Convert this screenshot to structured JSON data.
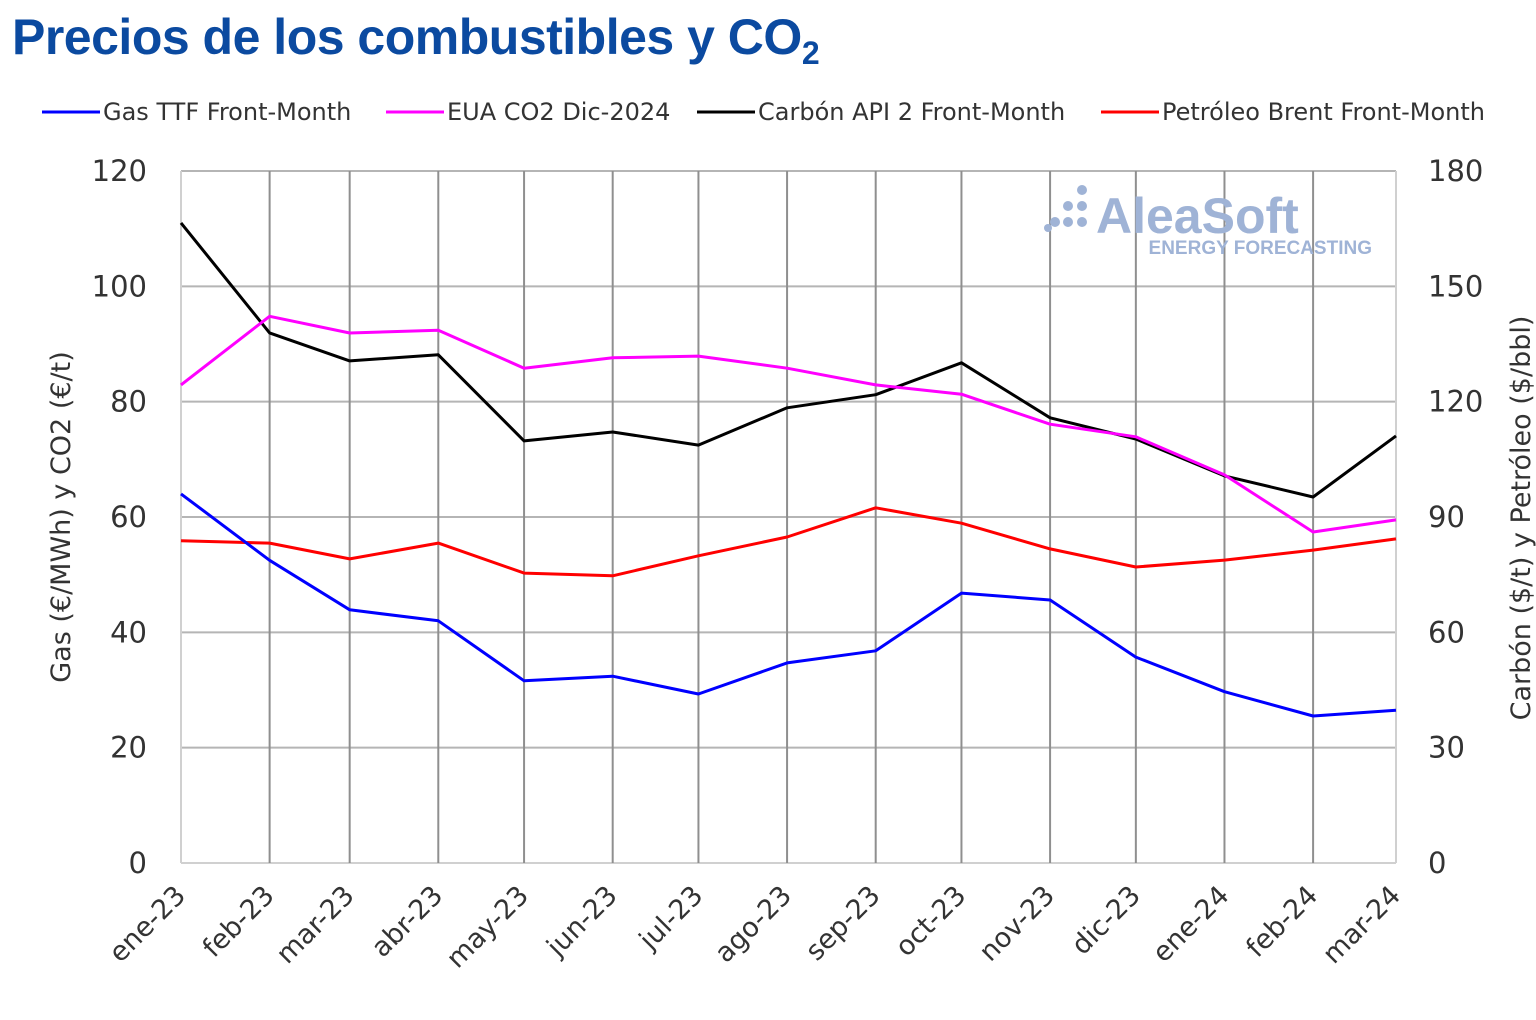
{
  "title": {
    "main": "Precios de los combustibles y CO",
    "sub": "2"
  },
  "logo": {
    "name": "AleaSoft",
    "tagline": "ENERGY FORECASTING",
    "color": "#9fb3d6"
  },
  "chart_data": {
    "type": "line",
    "categories": [
      "ene-23",
      "feb-23",
      "mar-23",
      "abr-23",
      "may-23",
      "jun-23",
      "jul-23",
      "ago-23",
      "sep-23",
      "oct-23",
      "nov-23",
      "dic-23",
      "ene-24",
      "feb-24",
      "mar-24"
    ],
    "ylabel_left": "Gas (€/MWh) y CO2 (€/t)",
    "ylabel_right": "Carbón ($/t) y Petróleo ($/bbl)",
    "ylim_left": [
      0,
      120
    ],
    "yticks_left": [
      0,
      20,
      40,
      60,
      80,
      100,
      120
    ],
    "ylim_right": [
      0,
      180
    ],
    "yticks_right": [
      0,
      30,
      60,
      90,
      120,
      150,
      180
    ],
    "grid": true,
    "legend_position": "top",
    "series": [
      {
        "name": "Gas TTF Front-Month",
        "axis": "left",
        "color": "#0000ff",
        "values": [
          64.0,
          52.5,
          43.9,
          42.0,
          31.6,
          32.4,
          29.3,
          34.7,
          36.8,
          46.8,
          45.6,
          35.7,
          29.7,
          25.5,
          26.5
        ]
      },
      {
        "name": "EUA CO2 Dic-2024",
        "axis": "left",
        "color": "#ff00ff",
        "values": [
          82.9,
          94.8,
          91.9,
          92.4,
          85.8,
          87.6,
          87.9,
          85.8,
          82.9,
          81.3,
          76.1,
          73.9,
          67.3,
          57.4,
          59.5
        ]
      },
      {
        "name": "Carbón API 2 Front-Month",
        "axis": "right",
        "color": "#000000",
        "values": [
          166.5,
          137.9,
          130.6,
          132.2,
          109.8,
          112.1,
          108.7,
          118.4,
          121.8,
          130.1,
          115.8,
          110.3,
          100.7,
          95.2,
          111.1
        ]
      },
      {
        "name": "Petróleo Brent Front-Month",
        "axis": "right",
        "color": "#ff0000",
        "values": [
          83.8,
          83.2,
          79.1,
          83.2,
          75.4,
          74.7,
          79.9,
          84.8,
          92.4,
          88.4,
          81.7,
          77.0,
          78.8,
          81.4,
          84.3
        ]
      }
    ]
  }
}
